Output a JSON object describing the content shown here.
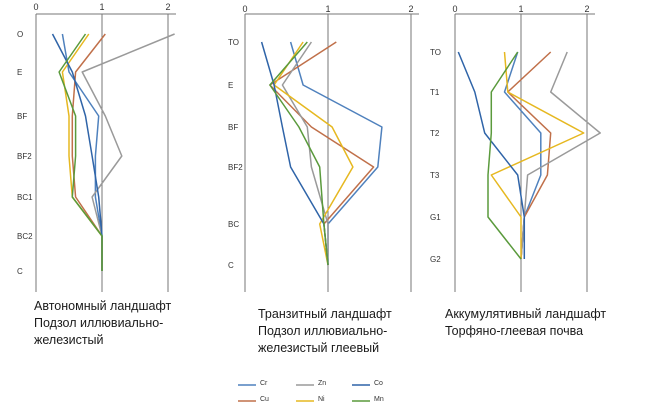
{
  "colors": {
    "axis": "#777777",
    "Cr": "#4f81bd",
    "Cu": "#c0704a",
    "Zn": "#9a9a9a",
    "Ni": "#e6b820",
    "Co": "#2f64a8",
    "Mn": "#5a9a3c"
  },
  "captions": [
    {
      "line1": "Автономный ландшафт",
      "line2": "Подзол иллювиально-",
      "line3": "железистый"
    },
    {
      "line1": "Транзитный ландшафт",
      "line2": "Подзол иллювиально-",
      "line3": "железистый глеевый"
    },
    {
      "line1": "Аккумулятивный ландшафт",
      "line2": "Торфяно-глеевая почва"
    }
  ],
  "legend": [
    {
      "name": "Cr",
      "color": "#4f81bd"
    },
    {
      "name": "Zn",
      "color": "#9a9a9a"
    },
    {
      "name": "Co",
      "color": "#2f64a8"
    },
    {
      "name": "Cu",
      "color": "#c0704a"
    },
    {
      "name": "Ni",
      "color": "#e6b820"
    },
    {
      "name": "Mn",
      "color": "#5a9a3c"
    }
  ],
  "chart_data": [
    {
      "type": "line",
      "orientation": "vertical-profile",
      "x_ticks": [
        "0",
        "1",
        "2"
      ],
      "xlim": [
        0,
        2
      ],
      "horizons": [
        "O",
        "E",
        "BF",
        "BF2",
        "BC1",
        "BC2",
        "C"
      ],
      "series": [
        {
          "name": "Cr",
          "values": [
            0.4,
            0.5,
            0.95,
            0.9,
            0.9,
            1.0,
            1.0
          ]
        },
        {
          "name": "Cu",
          "values": [
            1.05,
            0.6,
            0.55,
            0.55,
            0.6,
            1.0,
            1.0
          ]
        },
        {
          "name": "Zn",
          "values": [
            2.1,
            0.7,
            1.05,
            1.3,
            0.85,
            1.0,
            1.0
          ]
        },
        {
          "name": "Ni",
          "values": [
            0.8,
            0.4,
            0.5,
            0.5,
            0.55,
            1.0,
            1.0
          ]
        },
        {
          "name": "Co",
          "values": [
            0.25,
            0.55,
            0.75,
            0.85,
            0.95,
            1.0,
            1.0
          ]
        },
        {
          "name": "Mn",
          "values": [
            0.75,
            0.35,
            0.6,
            0.6,
            0.55,
            1.0,
            1.0
          ]
        }
      ]
    },
    {
      "type": "line",
      "orientation": "vertical-profile",
      "x_ticks": [
        "0",
        "1",
        "2"
      ],
      "xlim": [
        0,
        2
      ],
      "horizons": [
        "TO",
        "E",
        "BF",
        "BF2",
        "BC",
        "C"
      ],
      "series": [
        {
          "name": "Cr",
          "values": [
            0.55,
            0.7,
            1.65,
            1.6,
            1.0,
            1.0
          ]
        },
        {
          "name": "Cu",
          "values": [
            1.1,
            0.3,
            0.8,
            1.55,
            0.95,
            1.0
          ]
        },
        {
          "name": "Zn",
          "values": [
            0.8,
            0.45,
            0.75,
            0.8,
            1.0,
            1.0
          ]
        },
        {
          "name": "Ni",
          "values": [
            0.7,
            0.35,
            1.05,
            1.3,
            0.9,
            1.0
          ]
        },
        {
          "name": "Co",
          "values": [
            0.2,
            0.35,
            0.45,
            0.55,
            0.95,
            1.0
          ]
        },
        {
          "name": "Mn",
          "values": [
            0.75,
            0.3,
            0.65,
            0.9,
            0.95,
            1.0
          ]
        }
      ]
    },
    {
      "type": "line",
      "orientation": "vertical-profile",
      "x_ticks": [
        "0",
        "1",
        "2"
      ],
      "xlim": [
        0,
        2
      ],
      "horizons": [
        "TO",
        "T1",
        "T2",
        "T3",
        "G1",
        "G2"
      ],
      "series": [
        {
          "name": "Cr",
          "values": [
            0.95,
            0.75,
            1.3,
            1.3,
            1.05,
            1.0
          ]
        },
        {
          "name": "Cu",
          "values": [
            1.45,
            0.8,
            1.45,
            1.4,
            1.05,
            1.0
          ]
        },
        {
          "name": "Zn",
          "values": [
            1.7,
            1.45,
            2.2,
            1.1,
            1.05,
            1.0
          ]
        },
        {
          "name": "Ni",
          "values": [
            0.75,
            0.8,
            1.95,
            0.55,
            1.0,
            1.0
          ]
        },
        {
          "name": "Co",
          "values": [
            0.05,
            0.3,
            0.45,
            0.95,
            1.05,
            1.05
          ]
        },
        {
          "name": "Mn",
          "values": [
            0.95,
            0.55,
            0.55,
            0.5,
            0.5,
            1.0
          ]
        }
      ]
    }
  ]
}
